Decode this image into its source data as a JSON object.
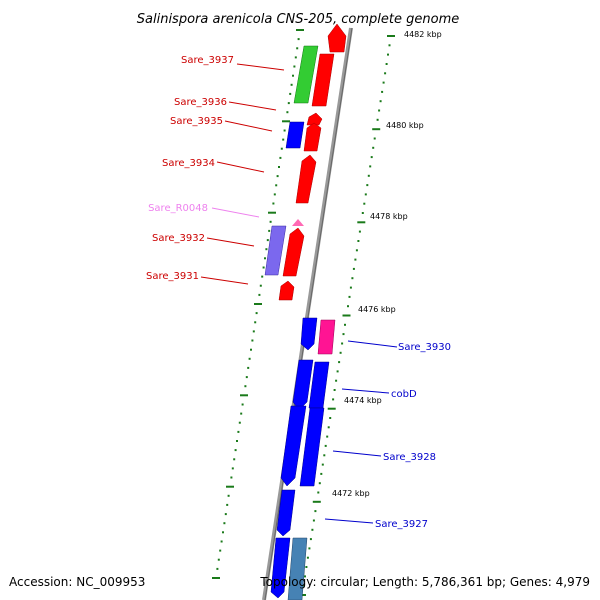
{
  "map": {
    "title": "Salinispora arenicola CNS-205, complete genome",
    "accession": "Accession: NC_009953",
    "summary": "Topology: circular; Length: 5,786,361 bp; Genes: 4,979"
  },
  "colors": {
    "backbone": "#8c8c8c",
    "tick": "#1a7a1a",
    "cds_red": "#ff0000",
    "cds_green": "#33cc33",
    "cds_blue": "#0000ff",
    "cds_purple": "#7b68ee",
    "cds_magenta": "#ff1493",
    "cds_steelblue": "#4682b4",
    "rna_pink": "#ff69b4",
    "label_red": "#cc0000",
    "label_pink": "#ee82ee",
    "label_blue": "#0000cc"
  },
  "ruler": [
    {
      "label": "4482 kbp"
    },
    {
      "label": "4480 kbp"
    },
    {
      "label": "4478 kbp"
    },
    {
      "label": "4476 kbp"
    },
    {
      "label": "4474 kbp"
    },
    {
      "label": "4472 kbp"
    }
  ],
  "gene_labels": [
    {
      "name": "Sare_3937",
      "color": "label_red"
    },
    {
      "name": "Sare_3936",
      "color": "label_red"
    },
    {
      "name": "Sare_3935",
      "color": "label_red"
    },
    {
      "name": "Sare_3934",
      "color": "label_red"
    },
    {
      "name": "Sare_R0048",
      "color": "label_pink"
    },
    {
      "name": "Sare_3932",
      "color": "label_red"
    },
    {
      "name": "Sare_3931",
      "color": "label_red"
    },
    {
      "name": "Sare_3930",
      "color": "label_blue"
    },
    {
      "name": "cobD",
      "color": "label_blue"
    },
    {
      "name": "Sare_3928",
      "color": "label_blue"
    },
    {
      "name": "Sare_3927",
      "color": "label_blue"
    }
  ]
}
